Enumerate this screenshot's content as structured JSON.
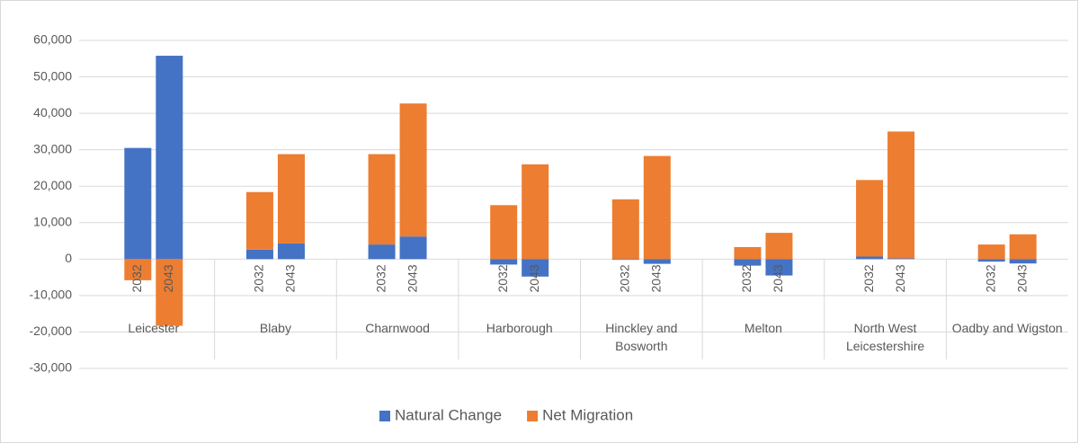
{
  "chart_data": {
    "type": "stacked_bar",
    "groups": [
      "Leicester",
      "Blaby",
      "Charnwood",
      "Harborough",
      "Hinckley and Bosworth",
      "Melton",
      "North West Leicestershire",
      "Oadby and Wigston"
    ],
    "categories": [
      "2032",
      "2043",
      "2032",
      "2043",
      "2032",
      "2043",
      "2032",
      "2043",
      "2032",
      "2043",
      "2032",
      "2043",
      "2032",
      "2043",
      "2032",
      "2043"
    ],
    "series": [
      {
        "name": "Natural Change",
        "color": "#4472c4",
        "values": [
          30500,
          55800,
          2600,
          4300,
          4000,
          6200,
          -1500,
          -4800,
          -200,
          -1300,
          -1800,
          -4500,
          700,
          200,
          -700,
          -1200
        ]
      },
      {
        "name": "Net Migration",
        "color": "#ed7d31",
        "values": [
          -5800,
          -18300,
          15800,
          24500,
          24800,
          36500,
          14800,
          26000,
          16400,
          28300,
          3300,
          7200,
          21000,
          34800,
          4000,
          6800
        ]
      }
    ],
    "ylim": [
      -30000,
      60000
    ],
    "yticks": [
      {
        "value": -30000,
        "label": "-30,000"
      },
      {
        "value": -20000,
        "label": "-20,000"
      },
      {
        "value": -10000,
        "label": "-10,000"
      },
      0,
      {
        "value": 10000,
        "label": "10,000"
      },
      {
        "value": 20000,
        "label": "20,000"
      },
      {
        "value": 30000,
        "label": "30,000"
      },
      {
        "value": 40000,
        "label": "40,000"
      },
      {
        "value": 50000,
        "label": "50,000"
      },
      {
        "value": 60000,
        "label": "60,000"
      }
    ],
    "grid": true,
    "legend": "bottom"
  }
}
